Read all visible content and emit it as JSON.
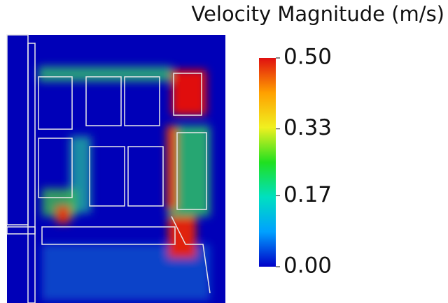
{
  "chart_data": {
    "type": "contour",
    "title": "Velocity Magnitude (m/s)",
    "colorbar_lim": [
      0,
      0.5
    ],
    "colorbar_ticks": [
      {
        "value": 0,
        "label": "0.00"
      },
      0.17,
      0.33,
      {
        "value": 0.5,
        "label": "0.50"
      }
    ],
    "colormap": [
      "#0000c8",
      "#00a0ff",
      "#00e0c0",
      "#20e020",
      "#f0f020",
      "#ffa000",
      "#e01010"
    ]
  }
}
